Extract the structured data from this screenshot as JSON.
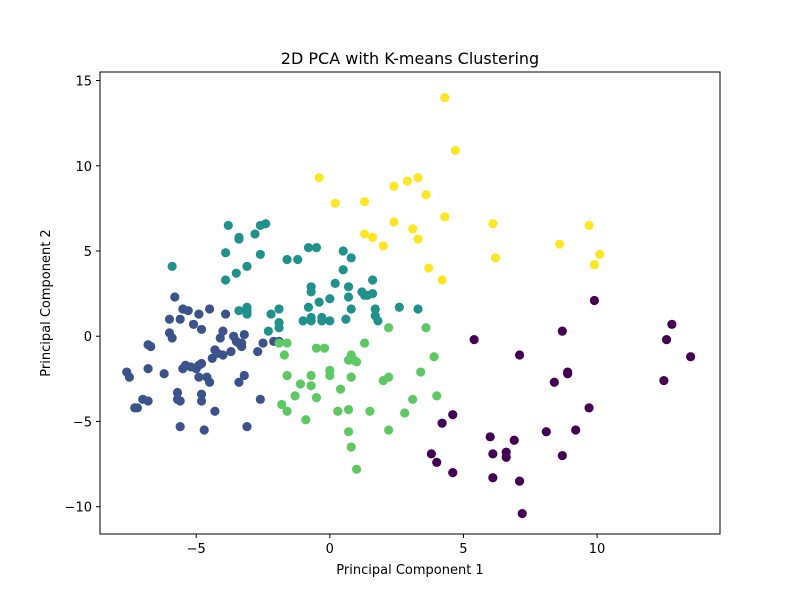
{
  "chart_data": {
    "type": "scatter",
    "title": "2D PCA with K-means Clustering",
    "xlabel": "Principal Component 1",
    "ylabel": "Principal Component 2",
    "xlim": [
      -8.6,
      14.6
    ],
    "ylim": [
      -11.6,
      15.5
    ],
    "xticks": [
      -5,
      0,
      5,
      10
    ],
    "yticks": [
      -10,
      -5,
      0,
      5,
      10,
      15
    ],
    "xtick_labels": [
      "−5",
      "0",
      "5",
      "10"
    ],
    "ytick_labels": [
      "−10",
      "−5",
      "0",
      "5",
      "10",
      "15"
    ],
    "legend": "none",
    "grid": false,
    "series": [
      {
        "color": "#440154",
        "points": [
          [
            4.6,
            -4.6
          ],
          [
            4.2,
            -5.1
          ],
          [
            3.8,
            -6.9
          ],
          [
            4.0,
            -7.4
          ],
          [
            4.6,
            -8.0
          ],
          [
            5.4,
            -0.2
          ],
          [
            6.0,
            -5.9
          ],
          [
            6.1,
            -6.9
          ],
          [
            6.1,
            -8.3
          ],
          [
            6.6,
            -6.8
          ],
          [
            6.6,
            -7.1
          ],
          [
            6.9,
            -6.1
          ],
          [
            7.1,
            -1.1
          ],
          [
            7.1,
            -8.5
          ],
          [
            7.2,
            -10.4
          ],
          [
            8.1,
            -5.6
          ],
          [
            8.4,
            -2.7
          ],
          [
            8.7,
            0.3
          ],
          [
            8.7,
            -7.0
          ],
          [
            8.9,
            -2.2
          ],
          [
            8.9,
            -2.1
          ],
          [
            9.2,
            -5.5
          ],
          [
            9.7,
            -4.2
          ],
          [
            9.9,
            2.1
          ],
          [
            12.5,
            -2.6
          ],
          [
            12.6,
            -0.2
          ],
          [
            12.8,
            0.7
          ],
          [
            13.5,
            -1.2
          ]
        ]
      },
      {
        "color": "#3b528b",
        "points": [
          [
            -7.6,
            -2.1
          ],
          [
            -7.5,
            -2.4
          ],
          [
            -7.3,
            -4.2
          ],
          [
            -7.2,
            -4.2
          ],
          [
            -7.0,
            -3.7
          ],
          [
            -6.8,
            -3.8
          ],
          [
            -6.8,
            -1.9
          ],
          [
            -6.8,
            -0.5
          ],
          [
            -6.7,
            -0.6
          ],
          [
            -6.2,
            -2.2
          ],
          [
            -6.0,
            1.0
          ],
          [
            -6.0,
            0.2
          ],
          [
            -5.9,
            -0.1
          ],
          [
            -5.8,
            2.3
          ],
          [
            -5.7,
            -3.3
          ],
          [
            -5.7,
            -3.7
          ],
          [
            -5.6,
            -3.8
          ],
          [
            -5.6,
            1.0
          ],
          [
            -5.6,
            -5.3
          ],
          [
            -5.5,
            1.6
          ],
          [
            -5.5,
            -1.9
          ],
          [
            -5.4,
            -1.7
          ],
          [
            -5.3,
            1.5
          ],
          [
            -5.2,
            -1.8
          ],
          [
            -5.1,
            0.7
          ],
          [
            -5.0,
            -1.9
          ],
          [
            -4.9,
            1.3
          ],
          [
            -4.9,
            -1.7
          ],
          [
            -4.9,
            -2.4
          ],
          [
            -4.8,
            -1.6
          ],
          [
            -4.8,
            -3.4
          ],
          [
            -4.8,
            -3.8
          ],
          [
            -4.8,
            0.4
          ],
          [
            -4.7,
            -5.5
          ],
          [
            -4.6,
            -2.4
          ],
          [
            -4.5,
            1.6
          ],
          [
            -4.5,
            -2.7
          ],
          [
            -4.4,
            -1.3
          ],
          [
            -4.3,
            -0.8
          ],
          [
            -4.3,
            -4.4
          ],
          [
            -4.2,
            -1.0
          ],
          [
            -4.1,
            -0.1
          ],
          [
            -4.0,
            -1.1
          ],
          [
            -4.0,
            0.3
          ],
          [
            -3.9,
            1.3
          ],
          [
            -3.7,
            -0.9
          ],
          [
            -3.6,
            0.0
          ],
          [
            -3.5,
            -0.3
          ],
          [
            -3.4,
            -0.4
          ],
          [
            -3.4,
            -2.7
          ],
          [
            -3.3,
            -0.4
          ],
          [
            -3.3,
            -0.6
          ],
          [
            -3.2,
            0.1
          ],
          [
            -3.2,
            -2.3
          ],
          [
            -3.1,
            -5.3
          ],
          [
            -2.7,
            -0.9
          ],
          [
            -2.5,
            -0.4
          ],
          [
            -2.6,
            -3.7
          ],
          [
            -2.1,
            -0.3
          ],
          [
            -1.9,
            -0.3
          ]
        ]
      },
      {
        "color": "#21918c",
        "points": [
          [
            -5.9,
            4.1
          ],
          [
            -3.9,
            4.9
          ],
          [
            -3.9,
            3.3
          ],
          [
            -3.8,
            6.5
          ],
          [
            -3.5,
            3.7
          ],
          [
            -3.4,
            5.7
          ],
          [
            -3.4,
            5.8
          ],
          [
            -3.4,
            1.5
          ],
          [
            -3.1,
            1.7
          ],
          [
            -3.1,
            1.5
          ],
          [
            -3.1,
            1.3
          ],
          [
            -3.1,
            4.1
          ],
          [
            -2.8,
            6.0
          ],
          [
            -2.6,
            4.8
          ],
          [
            -2.6,
            6.5
          ],
          [
            -2.4,
            6.6
          ],
          [
            -2.2,
            1.3
          ],
          [
            -2.3,
            0.3
          ],
          [
            -1.9,
            1.6
          ],
          [
            -1.9,
            0.8
          ],
          [
            -1.9,
            0.5
          ],
          [
            -1.6,
            4.5
          ],
          [
            -1.2,
            4.5
          ],
          [
            -1.0,
            0.9
          ],
          [
            -0.8,
            1.7
          ],
          [
            -0.8,
            5.2
          ],
          [
            -0.7,
            2.9
          ],
          [
            -0.7,
            2.6
          ],
          [
            -0.7,
            0.9
          ],
          [
            -0.7,
            1.1
          ],
          [
            -0.5,
            5.2
          ],
          [
            -0.4,
            2.0
          ],
          [
            -0.3,
            1.1
          ],
          [
            -0.3,
            0.9
          ],
          [
            0.0,
            2.2
          ],
          [
            0.0,
            0.9
          ],
          [
            0.2,
            3.1
          ],
          [
            0.5,
            3.9
          ],
          [
            0.5,
            5.0
          ],
          [
            0.6,
            1.0
          ],
          [
            0.7,
            2.9
          ],
          [
            0.7,
            2.3
          ],
          [
            0.8,
            4.6
          ],
          [
            0.8,
            1.6
          ],
          [
            1.2,
            2.6
          ],
          [
            1.3,
            2.4
          ],
          [
            1.4,
            2.4
          ],
          [
            1.6,
            2.5
          ],
          [
            1.6,
            3.3
          ],
          [
            1.7,
            1.2
          ],
          [
            1.7,
            1.6
          ],
          [
            1.8,
            0.9
          ],
          [
            2.6,
            1.7
          ],
          [
            3.3,
            1.6
          ]
        ]
      },
      {
        "color": "#5ec962",
        "points": [
          [
            -1.9,
            -0.4
          ],
          [
            -1.8,
            -4.0
          ],
          [
            -1.7,
            -1.1
          ],
          [
            -1.6,
            -0.4
          ],
          [
            -1.6,
            -2.3
          ],
          [
            -1.6,
            -4.4
          ],
          [
            -1.3,
            -3.5
          ],
          [
            -1.1,
            -2.8
          ],
          [
            -0.9,
            -4.9
          ],
          [
            -0.7,
            -2.3
          ],
          [
            -0.7,
            -2.9
          ],
          [
            -0.5,
            -0.7
          ],
          [
            -0.5,
            -3.6
          ],
          [
            -0.2,
            -0.7
          ],
          [
            0.0,
            -2.0
          ],
          [
            0.0,
            -2.3
          ],
          [
            0.3,
            -4.4
          ],
          [
            0.4,
            -3.1
          ],
          [
            0.7,
            -4.3
          ],
          [
            0.7,
            -5.6
          ],
          [
            0.7,
            -1.4
          ],
          [
            0.8,
            -1.1
          ],
          [
            0.8,
            -6.5
          ],
          [
            0.8,
            -2.4
          ],
          [
            0.9,
            -1.4
          ],
          [
            1.0,
            -1.5
          ],
          [
            1.0,
            -7.8
          ],
          [
            1.3,
            -0.4
          ],
          [
            1.5,
            -4.4
          ],
          [
            2.0,
            -2.6
          ],
          [
            2.2,
            0.5
          ],
          [
            2.2,
            -2.4
          ],
          [
            2.2,
            -5.5
          ],
          [
            2.8,
            -4.5
          ],
          [
            3.1,
            -3.7
          ],
          [
            3.4,
            -2.1
          ],
          [
            3.6,
            0.5
          ],
          [
            3.9,
            -1.2
          ],
          [
            4.0,
            -3.5
          ]
        ]
      },
      {
        "color": "#fde725",
        "points": [
          [
            -0.4,
            9.3
          ],
          [
            0.2,
            7.8
          ],
          [
            1.3,
            7.9
          ],
          [
            1.3,
            6.0
          ],
          [
            1.6,
            5.8
          ],
          [
            2.0,
            5.3
          ],
          [
            2.4,
            6.7
          ],
          [
            2.4,
            8.8
          ],
          [
            2.9,
            9.1
          ],
          [
            3.1,
            6.3
          ],
          [
            3.3,
            9.3
          ],
          [
            3.3,
            5.7
          ],
          [
            3.6,
            8.3
          ],
          [
            3.7,
            4.0
          ],
          [
            4.2,
            3.3
          ],
          [
            4.3,
            14.0
          ],
          [
            4.3,
            7.0
          ],
          [
            4.7,
            10.9
          ],
          [
            6.1,
            6.6
          ],
          [
            6.2,
            4.6
          ],
          [
            8.6,
            5.4
          ],
          [
            9.7,
            6.5
          ],
          [
            9.9,
            4.2
          ],
          [
            10.1,
            4.8
          ]
        ]
      }
    ]
  }
}
